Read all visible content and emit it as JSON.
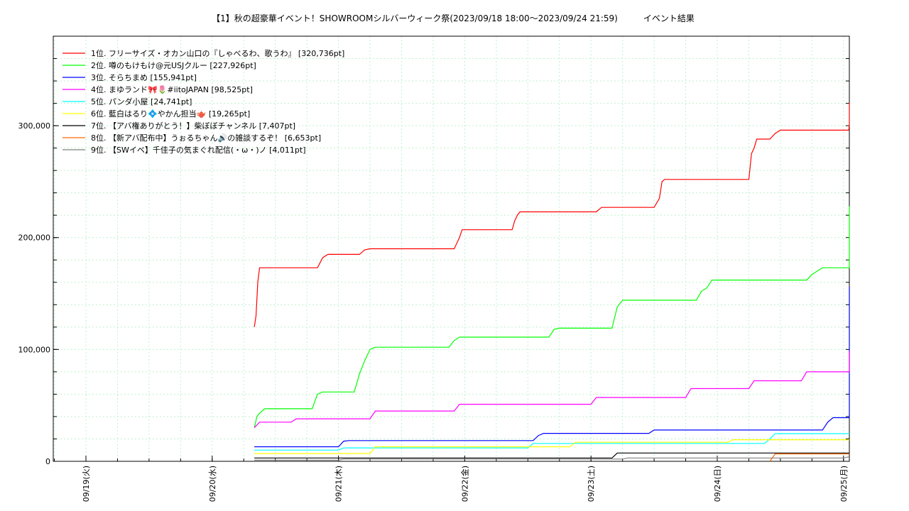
{
  "chart_data": {
    "type": "line",
    "title": "【1】秋の超豪華イベント！SHOWROOMシルバーウィーク祭(2023/09/18 18:00〜2023/09/24 21:59)　　　イベント結果",
    "xlabel": "",
    "ylabel": "",
    "x_ticks": [
      "09/19(火)",
      "09/20(水)",
      "09/21(木)",
      "09/22(金)",
      "09/23(土)",
      "09/24(日)",
      "09/25(月)"
    ],
    "x_range": [
      "2023-09-18 18:00",
      "2023-09-25 00:00"
    ],
    "ylim": [
      0,
      380000
    ],
    "y_ticks": [
      0,
      100000,
      200000,
      300000
    ],
    "y_tick_labels": [
      "0",
      "100,000",
      "200,000",
      "300,000"
    ],
    "grid": true,
    "legend_position": "top-left",
    "series": [
      {
        "name": "1位. フリーサイズ・オカン山口の『しゃべるわ、歌うわ』 [320,736pt]",
        "color": "#ff0000",
        "points": [
          [
            "09/20 08:00",
            120000
          ],
          [
            "09/20 08:20",
            130000
          ],
          [
            "09/20 08:40",
            160000
          ],
          [
            "09/20 09:00",
            173000
          ],
          [
            "09/20 20:00",
            173000
          ],
          [
            "09/20 21:00",
            182000
          ],
          [
            "09/20 22:00",
            185000
          ],
          [
            "09/21 04:00",
            185000
          ],
          [
            "09/21 05:00",
            189000
          ],
          [
            "09/21 06:00",
            190000
          ],
          [
            "09/21 22:00",
            190000
          ],
          [
            "09/21 23:00",
            200000
          ],
          [
            "09/21 23:30",
            207000
          ],
          [
            "09/22 09:00",
            207000
          ],
          [
            "09/22 09:30",
            215000
          ],
          [
            "09/22 10:00",
            220000
          ],
          [
            "09/22 10:30",
            223000
          ],
          [
            "09/23 01:00",
            223000
          ],
          [
            "09/23 02:00",
            227000
          ],
          [
            "09/23 12:00",
            227000
          ],
          [
            "09/23 13:00",
            235000
          ],
          [
            "09/23 13:30",
            250000
          ],
          [
            "09/23 14:00",
            252000
          ],
          [
            "09/24 06:00",
            252000
          ],
          [
            "09/24 06:30",
            275000
          ],
          [
            "09/24 07:00",
            280000
          ],
          [
            "09/24 07:30",
            288000
          ],
          [
            "09/24 10:00",
            288000
          ],
          [
            "09/24 11:00",
            293000
          ],
          [
            "09/24 12:00",
            296000
          ],
          [
            "09/25 01:00",
            296000
          ],
          [
            "09/25 02:00",
            301000
          ],
          [
            "09/25 12:00",
            301000
          ],
          [
            "09/25 13:00",
            310000
          ],
          [
            "09/25 14:00",
            320736
          ],
          [
            "09/25 18:00",
            320736
          ]
        ]
      },
      {
        "name": "2位. 噂のもけもけ@元USJクルー [227,926pt]",
        "color": "#00ff00",
        "points": [
          [
            "09/20 08:00",
            30000
          ],
          [
            "09/20 08:30",
            40000
          ],
          [
            "09/20 09:00",
            43000
          ],
          [
            "09/20 10:00",
            47000
          ],
          [
            "09/20 19:00",
            47000
          ],
          [
            "09/20 20:00",
            60000
          ],
          [
            "09/20 21:00",
            62000
          ],
          [
            "09/21 03:00",
            62000
          ],
          [
            "09/21 04:00",
            78000
          ],
          [
            "09/21 05:00",
            90000
          ],
          [
            "09/21 06:00",
            100000
          ],
          [
            "09/21 07:00",
            102000
          ],
          [
            "09/21 21:00",
            102000
          ],
          [
            "09/21 22:00",
            108000
          ],
          [
            "09/21 23:00",
            111000
          ],
          [
            "09/22 16:00",
            111000
          ],
          [
            "09/22 17:00",
            118000
          ],
          [
            "09/22 18:00",
            119000
          ],
          [
            "09/23 04:00",
            119000
          ],
          [
            "09/23 05:00",
            138000
          ],
          [
            "09/23 06:00",
            144000
          ],
          [
            "09/23 20:00",
            144000
          ],
          [
            "09/23 21:00",
            152000
          ],
          [
            "09/23 22:00",
            155000
          ],
          [
            "09/23 23:00",
            162000
          ],
          [
            "09/24 17:00",
            162000
          ],
          [
            "09/24 18:00",
            167000
          ],
          [
            "09/24 19:00",
            170000
          ],
          [
            "09/24 20:00",
            173000
          ],
          [
            "09/25 11:00",
            173000
          ],
          [
            "09/25 12:00",
            178000
          ],
          [
            "09/25 21:00",
            178000
          ],
          [
            "09/25 22:00",
            227926
          ],
          [
            "09/25 23:59",
            227926
          ]
        ]
      },
      {
        "name": "3位. そらちまめ [155,941pt]",
        "color": "#0000ff",
        "points": [
          [
            "09/20 08:00",
            13000
          ],
          [
            "09/21 00:00",
            13000
          ],
          [
            "09/21 01:00",
            18000
          ],
          [
            "09/21 02:00",
            18500
          ],
          [
            "09/22 13:00",
            18500
          ],
          [
            "09/22 14:00",
            23000
          ],
          [
            "09/22 15:00",
            25000
          ],
          [
            "09/23 11:00",
            25000
          ],
          [
            "09/23 12:00",
            28000
          ],
          [
            "09/24 20:00",
            28000
          ],
          [
            "09/24 21:00",
            35000
          ],
          [
            "09/24 22:00",
            39000
          ],
          [
            "09/25 13:00",
            39000
          ],
          [
            "09/25 14:00",
            118000
          ],
          [
            "09/25 15:00",
            125000
          ],
          [
            "09/25 16:00",
            133000
          ],
          [
            "09/25 20:00",
            133000
          ],
          [
            "09/25 21:00",
            145000
          ],
          [
            "09/25 22:00",
            155941
          ],
          [
            "09/25 23:59",
            155941
          ]
        ]
      },
      {
        "name": "4位. まゆランド🎀🌷#iitoJAPAN [98,525pt]",
        "color": "#ff00ff",
        "points": [
          [
            "09/20 08:00",
            30000
          ],
          [
            "09/20 09:00",
            35000
          ],
          [
            "09/20 15:00",
            35000
          ],
          [
            "09/20 16:00",
            38000
          ],
          [
            "09/21 06:00",
            38000
          ],
          [
            "09/21 07:00",
            45000
          ],
          [
            "09/21 22:00",
            45000
          ],
          [
            "09/21 23:00",
            51000
          ],
          [
            "09/23 00:00",
            51000
          ],
          [
            "09/23 01:00",
            57000
          ],
          [
            "09/23 18:00",
            57000
          ],
          [
            "09/23 19:00",
            65000
          ],
          [
            "09/24 06:00",
            65000
          ],
          [
            "09/24 07:00",
            72000
          ],
          [
            "09/24 16:00",
            72000
          ],
          [
            "09/24 17:00",
            80000
          ],
          [
            "09/25 15:00",
            80000
          ],
          [
            "09/25 16:00",
            86000
          ],
          [
            "09/25 21:00",
            86000
          ],
          [
            "09/25 22:00",
            98525
          ],
          [
            "09/25 23:59",
            98525
          ]
        ]
      },
      {
        "name": "5位. パンダ小屋 [24,741pt]",
        "color": "#00ffff",
        "points": [
          [
            "09/20 08:00",
            10000
          ],
          [
            "09/21 00:00",
            10000
          ],
          [
            "09/21 01:00",
            12000
          ],
          [
            "09/22 12:00",
            12000
          ],
          [
            "09/22 13:00",
            16000
          ],
          [
            "09/24 09:00",
            16000
          ],
          [
            "09/24 10:00",
            20000
          ],
          [
            "09/24 11:00",
            24741
          ],
          [
            "09/25 23:59",
            24741
          ]
        ]
      },
      {
        "name": "6位. 藍白はるり💠やかん担当🫖 [19,265pt]",
        "color": "#ffff00",
        "points": [
          [
            "09/20 08:00",
            7000
          ],
          [
            "09/21 06:00",
            7000
          ],
          [
            "09/21 07:00",
            13000
          ],
          [
            "09/22 20:00",
            13000
          ],
          [
            "09/22 21:00",
            17000
          ],
          [
            "09/24 02:00",
            17000
          ],
          [
            "09/24 03:00",
            19265
          ],
          [
            "09/25 23:59",
            19265
          ]
        ]
      },
      {
        "name": "7位. 【アバ権ありがとう！】柴ぼぼチャンネル [7,407pt]",
        "color": "#000000",
        "points": [
          [
            "09/20 08:00",
            3000
          ],
          [
            "09/23 04:00",
            3000
          ],
          [
            "09/23 05:00",
            7407
          ],
          [
            "09/25 23:59",
            7407
          ]
        ]
      },
      {
        "name": "8位. 【新アバ配布中】うぉるちゃん🔊の雑談するぞ！ [6,653pt]",
        "color": "#ff6600",
        "points": [
          [
            "09/24 10:00",
            0
          ],
          [
            "09/24 11:00",
            6653
          ],
          [
            "09/25 23:59",
            6653
          ]
        ]
      },
      {
        "name": "9位. 【SWイベ】千佳子の気まぐれ配信(・ω・)ノ [4,011pt]",
        "color": "#808080",
        "points": [
          [
            "09/20 08:00",
            1000
          ],
          [
            "09/21 00:00",
            1000
          ],
          [
            "09/21 01:00",
            2000
          ],
          [
            "09/23 06:00",
            2000
          ],
          [
            "09/23 07:00",
            3000
          ],
          [
            "09/25 00:00",
            3000
          ],
          [
            "09/25 01:00",
            4011
          ],
          [
            "09/25 23:59",
            4011
          ]
        ]
      }
    ]
  }
}
